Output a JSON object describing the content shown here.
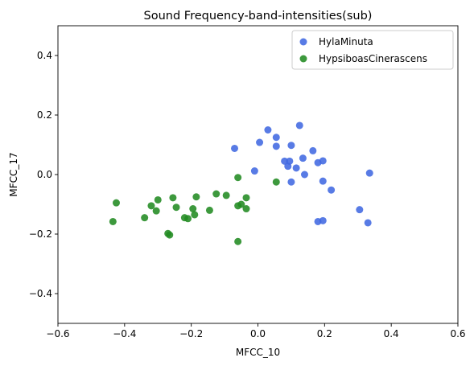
{
  "chart_data": {
    "type": "scatter",
    "title": "Sound Frequency-band-intensities(sub)",
    "xlabel": "MFCC_10",
    "ylabel": "MFCC_17",
    "xlim": [
      -0.6,
      0.6
    ],
    "ylim": [
      -0.5,
      0.5
    ],
    "xticks": [
      "−0.6",
      "−0.4",
      "−0.2",
      "0.0",
      "0.2",
      "0.4",
      "0.6"
    ],
    "xtick_values": [
      -0.6,
      -0.4,
      -0.2,
      0.0,
      0.2,
      0.4,
      0.6
    ],
    "yticks": [
      "−0.4",
      "−0.2",
      "0.0",
      "0.2",
      "0.4"
    ],
    "ytick_values": [
      -0.4,
      -0.2,
      0.0,
      0.2,
      0.4
    ],
    "grid": false,
    "legend_position": "top-right",
    "series": [
      {
        "name": "HylaMinuta",
        "color": "#4169e1",
        "points": [
          [
            0.03,
            0.15
          ],
          [
            0.055,
            0.125
          ],
          [
            0.125,
            0.165
          ],
          [
            0.055,
            0.095
          ],
          [
            0.1,
            0.098
          ],
          [
            -0.07,
            0.088
          ],
          [
            0.005,
            0.108
          ],
          [
            0.165,
            0.08
          ],
          [
            0.135,
            0.055
          ],
          [
            0.18,
            0.04
          ],
          [
            0.195,
            0.046
          ],
          [
            0.08,
            0.045
          ],
          [
            0.095,
            0.045
          ],
          [
            0.09,
            0.028
          ],
          [
            0.115,
            0.022
          ],
          [
            -0.01,
            0.012
          ],
          [
            0.14,
            0.0
          ],
          [
            0.335,
            0.005
          ],
          [
            0.1,
            -0.025
          ],
          [
            0.195,
            -0.022
          ],
          [
            0.22,
            -0.052
          ],
          [
            0.305,
            -0.118
          ],
          [
            0.18,
            -0.158
          ],
          [
            0.195,
            -0.155
          ],
          [
            0.33,
            -0.162
          ]
        ]
      },
      {
        "name": "HypsiboasCinerascens",
        "color": "#228b22",
        "points": [
          [
            -0.06,
            -0.01
          ],
          [
            0.055,
            -0.025
          ],
          [
            -0.125,
            -0.065
          ],
          [
            -0.095,
            -0.07
          ],
          [
            -0.185,
            -0.075
          ],
          [
            -0.255,
            -0.078
          ],
          [
            -0.3,
            -0.085
          ],
          [
            -0.035,
            -0.078
          ],
          [
            -0.425,
            -0.095
          ],
          [
            -0.32,
            -0.105
          ],
          [
            -0.05,
            -0.1
          ],
          [
            -0.245,
            -0.11
          ],
          [
            -0.06,
            -0.105
          ],
          [
            -0.195,
            -0.115
          ],
          [
            -0.035,
            -0.115
          ],
          [
            -0.305,
            -0.122
          ],
          [
            -0.145,
            -0.12
          ],
          [
            -0.19,
            -0.135
          ],
          [
            -0.22,
            -0.145
          ],
          [
            -0.21,
            -0.148
          ],
          [
            -0.34,
            -0.145
          ],
          [
            -0.435,
            -0.158
          ],
          [
            -0.27,
            -0.198
          ],
          [
            -0.265,
            -0.203
          ],
          [
            -0.06,
            -0.225
          ]
        ]
      }
    ]
  }
}
